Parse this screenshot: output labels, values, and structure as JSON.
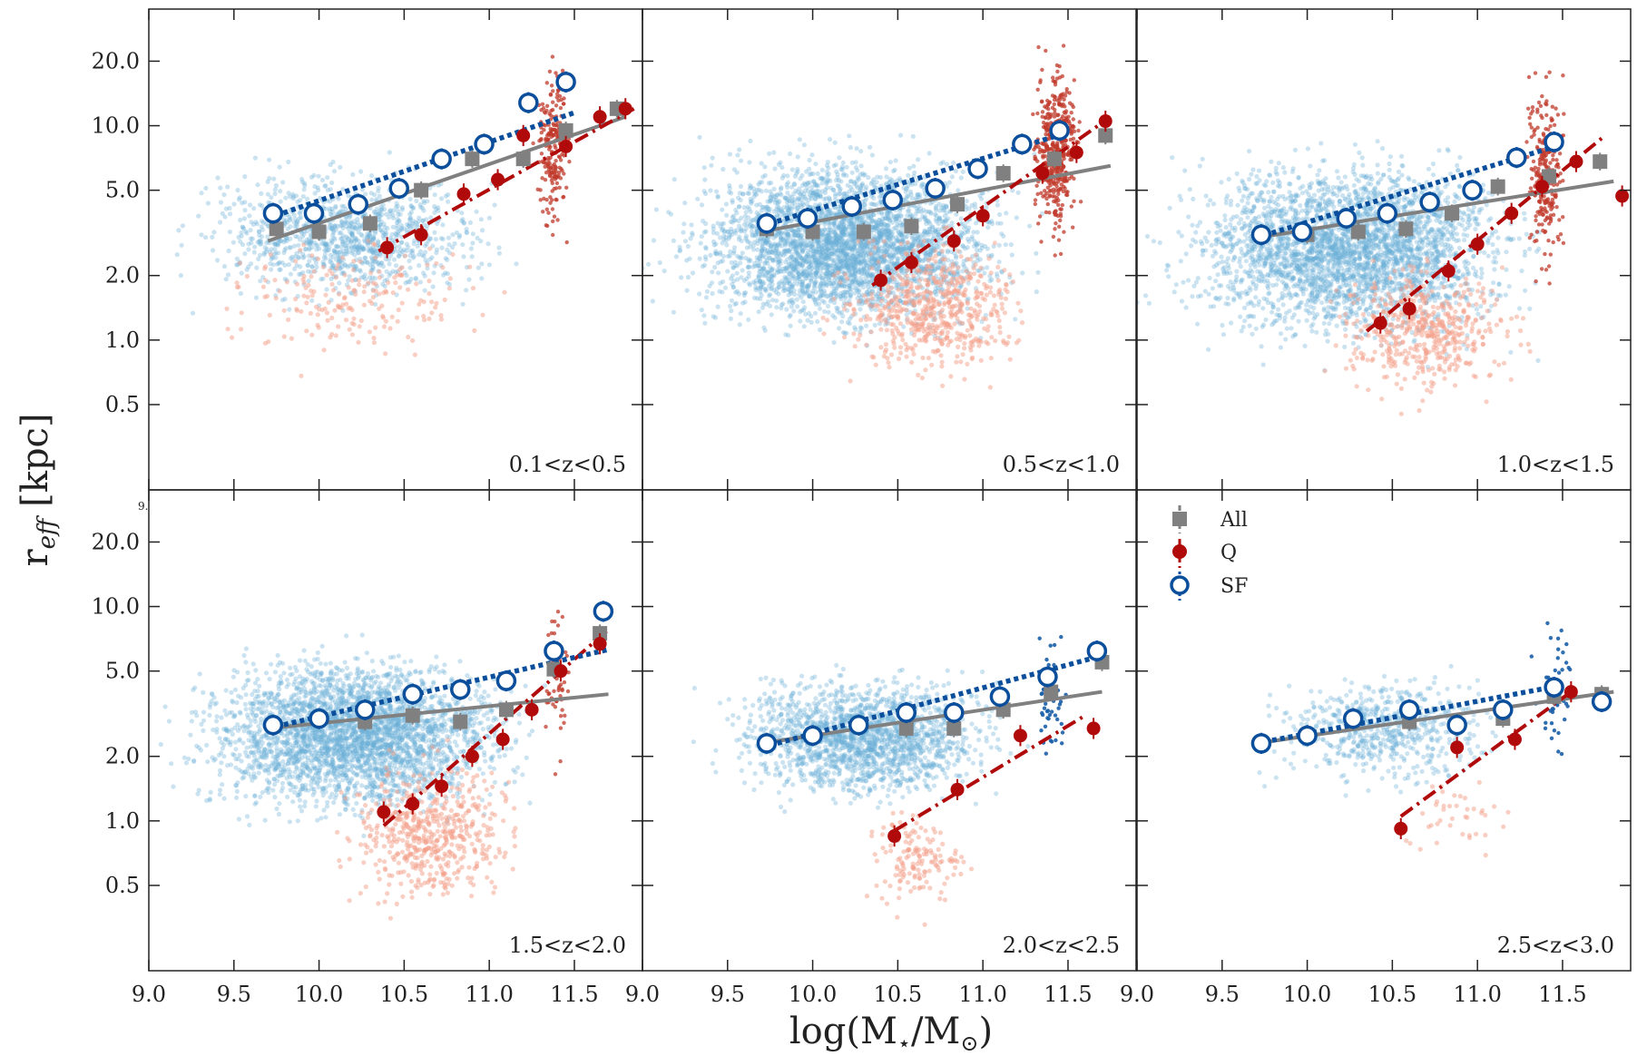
{
  "figure": {
    "ylabel": "r_eff [kpc]",
    "ylabel_main": "r",
    "ylabel_sub": "eff",
    "ylabel_unit": " [kpc]",
    "xlabel": "log(M⋆/M⊙)",
    "xlabel_prefix": "log(M",
    "xlabel_star": "⋆",
    "xlabel_mid": "/M",
    "xlabel_sun": "⊙",
    "xlabel_suffix": ")",
    "stray_tick": "9."
  },
  "legend": {
    "all": "All",
    "q": "Q",
    "sf": "SF"
  },
  "colors": {
    "all": "#808080",
    "q": "#b00a0a",
    "sf": "#0b4f9c",
    "sf_cloud": "#6aaed6",
    "q_cloud": "#f4a08a",
    "q_dense": "#c0392b",
    "sf_dense": "#1a5fa8"
  },
  "chart_data": {
    "type": "scatter",
    "layout": "2 rows x 3 columns, shared axes",
    "x_axis": {
      "label": "log(M⋆/M⊙)",
      "range": [
        9.0,
        11.9
      ],
      "ticks": [
        9.0,
        9.5,
        10.0,
        10.5,
        11.0,
        11.5
      ],
      "tick_labels": [
        "9.0",
        "9.5",
        "10.0",
        "10.5",
        "11.0",
        "11.5"
      ]
    },
    "y_axis": {
      "label": "r_eff [kpc]",
      "scale": "log",
      "range": [
        0.2,
        35
      ],
      "ticks": [
        0.5,
        1.0,
        2.0,
        5.0,
        10.0,
        20.0
      ],
      "tick_labels": [
        "0.5",
        "1.0",
        "2.0",
        "5.0",
        "10.0",
        "20.0"
      ]
    },
    "panels": [
      {
        "label": "0.1<z<0.5",
        "all": {
          "x": [
            9.75,
            10.0,
            10.3,
            10.6,
            10.9,
            11.2,
            11.45,
            11.75
          ],
          "y": [
            3.3,
            3.2,
            3.5,
            5.0,
            7.0,
            7.0,
            9.5,
            12.0
          ]
        },
        "q": {
          "x": [
            10.4,
            10.6,
            10.85,
            11.05,
            11.2,
            11.45,
            11.65,
            11.8
          ],
          "y": [
            2.7,
            3.1,
            4.8,
            5.6,
            9.0,
            8.0,
            11.0,
            12.0
          ]
        },
        "sf": {
          "x": [
            9.73,
            9.97,
            10.23,
            10.47,
            10.72,
            10.97,
            11.23,
            11.45
          ],
          "y": [
            3.9,
            3.9,
            4.3,
            5.1,
            7.0,
            8.2,
            12.8,
            16.0
          ]
        },
        "fit_all": [
          [
            9.7,
            2.9
          ],
          [
            11.8,
            11.0
          ]
        ],
        "fit_q": [
          [
            10.35,
            2.6
          ],
          [
            11.85,
            12.0
          ]
        ],
        "fit_sf": [
          [
            9.7,
            3.7
          ],
          [
            11.5,
            11.5
          ]
        ],
        "cloud_sf": {
          "x": [
            9.0,
            11.3
          ],
          "y": [
            1.2,
            8.0
          ],
          "n": 1100
        },
        "cloud_q": {
          "x": [
            9.2,
            11.2
          ],
          "y": [
            0.6,
            4.0
          ],
          "n": 200
        },
        "dense_q": {
          "x": [
            11.25,
            11.5
          ],
          "y": [
            2.5,
            25.0
          ],
          "n": 200
        }
      },
      {
        "label": "0.5<z<1.0",
        "all": {
          "x": [
            9.73,
            10.0,
            10.3,
            10.58,
            10.85,
            11.12,
            11.42,
            11.72
          ],
          "y": [
            3.3,
            3.2,
            3.2,
            3.4,
            4.3,
            6.0,
            7.0,
            9.0
          ]
        },
        "q": {
          "x": [
            10.4,
            10.58,
            10.83,
            11.0,
            11.35,
            11.55,
            11.72
          ],
          "y": [
            1.9,
            2.3,
            2.9,
            3.8,
            6.0,
            7.5,
            10.5
          ]
        },
        "sf": {
          "x": [
            9.73,
            9.97,
            10.23,
            10.47,
            10.72,
            10.97,
            11.23,
            11.45
          ],
          "y": [
            3.5,
            3.7,
            4.2,
            4.5,
            5.1,
            6.3,
            8.2,
            9.5
          ]
        },
        "fit_all": [
          [
            9.7,
            3.2
          ],
          [
            11.75,
            6.5
          ]
        ],
        "fit_q": [
          [
            10.35,
            1.8
          ],
          [
            11.75,
            11.0
          ]
        ],
        "fit_sf": [
          [
            9.7,
            3.4
          ],
          [
            11.5,
            9.3
          ]
        ],
        "cloud_sf": {
          "x": [
            9.0,
            11.4
          ],
          "y": [
            0.8,
            10.0
          ],
          "n": 3500
        },
        "cloud_q": {
          "x": [
            10.0,
            11.4
          ],
          "y": [
            0.5,
            4.0
          ],
          "n": 600
        },
        "dense_q": {
          "x": [
            11.25,
            11.6
          ],
          "y": [
            2.0,
            30.0
          ],
          "n": 450
        }
      },
      {
        "label": "1.0<z<1.5",
        "all": {
          "x": [
            9.73,
            10.0,
            10.3,
            10.58,
            10.85,
            11.12,
            11.42,
            11.72
          ],
          "y": [
            3.1,
            3.1,
            3.2,
            3.3,
            3.9,
            5.2,
            5.8,
            6.8
          ]
        },
        "q": {
          "x": [
            10.43,
            10.6,
            10.83,
            11.0,
            11.2,
            11.38,
            11.58,
            11.85
          ],
          "y": [
            1.2,
            1.4,
            2.1,
            2.8,
            3.9,
            5.2,
            6.8,
            4.7
          ]
        },
        "sf": {
          "x": [
            9.73,
            9.97,
            10.23,
            10.47,
            10.72,
            10.97,
            11.23,
            11.45
          ],
          "y": [
            3.1,
            3.2,
            3.7,
            3.9,
            4.4,
            5.0,
            7.1,
            8.4
          ]
        },
        "fit_all": [
          [
            9.7,
            3.0
          ],
          [
            11.8,
            5.5
          ]
        ],
        "fit_q": [
          [
            10.35,
            1.1
          ],
          [
            11.75,
            9.0
          ]
        ],
        "fit_sf": [
          [
            9.7,
            3.0
          ],
          [
            11.5,
            8.2
          ]
        ],
        "cloud_sf": {
          "x": [
            9.0,
            11.5
          ],
          "y": [
            0.7,
            10.0
          ],
          "n": 3200
        },
        "cloud_q": {
          "x": [
            10.0,
            11.4
          ],
          "y": [
            0.4,
            3.0
          ],
          "n": 500
        },
        "dense_q": {
          "x": [
            11.25,
            11.55
          ],
          "y": [
            1.5,
            25.0
          ],
          "n": 250
        }
      },
      {
        "label": "1.5<z<2.0",
        "all": {
          "x": [
            10.27,
            10.55,
            10.83,
            11.1,
            11.38,
            11.65
          ],
          "y": [
            2.9,
            3.1,
            2.9,
            3.3,
            5.1,
            7.5
          ]
        },
        "q": {
          "x": [
            10.38,
            10.55,
            10.72,
            10.9,
            11.08,
            11.25,
            11.42,
            11.65
          ],
          "y": [
            1.1,
            1.2,
            1.45,
            2.0,
            2.4,
            3.3,
            5.0,
            6.7
          ]
        },
        "sf": {
          "x": [
            9.73,
            10.0,
            10.27,
            10.55,
            10.83,
            11.1,
            11.38,
            11.67
          ],
          "y": [
            2.8,
            3.0,
            3.3,
            3.9,
            4.1,
            4.5,
            6.2,
            9.5
          ]
        },
        "fit_all": [
          [
            9.7,
            2.7
          ],
          [
            11.7,
            3.9
          ]
        ],
        "fit_q": [
          [
            10.38,
            0.95
          ],
          [
            11.7,
            7.8
          ]
        ],
        "fit_sf": [
          [
            9.7,
            2.7
          ],
          [
            11.7,
            6.3
          ]
        ],
        "cloud_sf": {
          "x": [
            9.0,
            11.4
          ],
          "y": [
            0.8,
            8.0
          ],
          "n": 3200
        },
        "cloud_q": {
          "x": [
            10.0,
            11.3
          ],
          "y": [
            0.3,
            2.5
          ],
          "n": 550
        },
        "dense_q": {
          "x": [
            11.3,
            11.5
          ],
          "y": [
            1.5,
            15.0
          ],
          "n": 60
        }
      },
      {
        "label": "2.0<z<2.5",
        "all": {
          "x": [
            10.55,
            10.83,
            11.12,
            11.4,
            11.7
          ],
          "y": [
            2.7,
            2.7,
            3.3,
            4.0,
            5.5
          ]
        },
        "q": {
          "x": [
            10.48,
            10.85,
            11.22,
            11.65
          ],
          "y": [
            0.85,
            1.4,
            2.5,
            2.7
          ]
        },
        "sf": {
          "x": [
            9.73,
            10.0,
            10.27,
            10.55,
            10.83,
            11.1,
            11.38,
            11.67
          ],
          "y": [
            2.3,
            2.5,
            2.8,
            3.2,
            3.2,
            3.8,
            4.7,
            6.2
          ]
        },
        "fit_all": [
          [
            9.7,
            2.3
          ],
          [
            11.7,
            4.0
          ]
        ],
        "fit_q": [
          [
            10.48,
            0.9
          ],
          [
            11.6,
            3.1
          ]
        ],
        "fit_sf": [
          [
            9.7,
            2.2
          ],
          [
            11.7,
            5.9
          ]
        ],
        "cloud_sf": {
          "x": [
            9.3,
            11.3
          ],
          "y": [
            1.0,
            6.0
          ],
          "n": 1800
        },
        "cloud_q": {
          "x": [
            10.2,
            11.0
          ],
          "y": [
            0.3,
            1.5
          ],
          "n": 150
        },
        "dense_sf": {
          "x": [
            11.3,
            11.5
          ],
          "y": [
            1.5,
            10.0
          ],
          "n": 50
        }
      },
      {
        "label": "2.5<z<3.0",
        "all": {
          "x": [
            10.6,
            11.15,
            11.45,
            11.73
          ],
          "y": [
            2.9,
            3.0,
            3.8,
            3.9
          ]
        },
        "q": {
          "x": [
            10.55,
            10.88,
            11.22,
            11.55
          ],
          "y": [
            0.92,
            2.2,
            2.4,
            4.0
          ]
        },
        "sf": {
          "x": [
            9.73,
            10.0,
            10.27,
            10.6,
            10.88,
            11.15,
            11.45,
            11.73
          ],
          "y": [
            2.3,
            2.5,
            3.0,
            3.3,
            2.8,
            3.3,
            4.2,
            3.6
          ]
        },
        "fit_all": [
          [
            9.7,
            2.3
          ],
          [
            11.8,
            4.0
          ]
        ],
        "fit_q": [
          [
            10.55,
            1.05
          ],
          [
            11.55,
            4.0
          ]
        ],
        "fit_sf": [
          [
            9.7,
            2.3
          ],
          [
            11.5,
            4.3
          ]
        ],
        "cloud_sf": {
          "x": [
            9.6,
            11.3
          ],
          "y": [
            1.2,
            6.0
          ],
          "n": 650
        },
        "cloud_q": {
          "x": [
            10.5,
            11.3
          ],
          "y": [
            0.6,
            2.0
          ],
          "n": 40
        },
        "dense_sf": {
          "x": [
            11.3,
            11.6
          ],
          "y": [
            1.5,
            12.0
          ],
          "n": 40
        }
      }
    ],
    "legend": [
      "All",
      "Q",
      "SF"
    ]
  }
}
